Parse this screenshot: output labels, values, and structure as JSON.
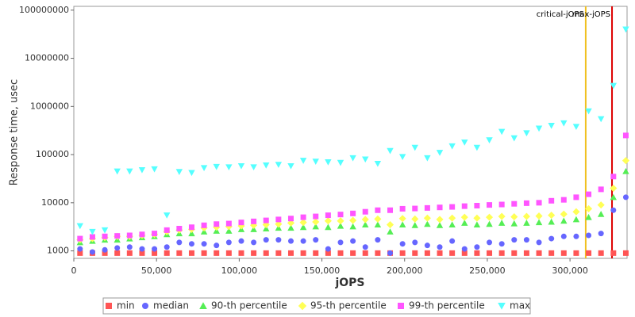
{
  "chart_data": {
    "type": "scatter",
    "ylabel": "Response time, usec",
    "xlabel": "jOPS",
    "ylog": true,
    "xlim": [
      0,
      334500
    ],
    "ylim": [
      700,
      120000000
    ],
    "xticks": [
      0,
      {
        "value": 50000,
        "label": "50,000"
      },
      {
        "value": 100000,
        "label": "100,000"
      },
      {
        "value": 150000,
        "label": "150,000"
      },
      {
        "value": 200000,
        "label": "200,000"
      },
      {
        "value": 250000,
        "label": "250,000"
      },
      {
        "value": 300000,
        "label": "300,000"
      }
    ],
    "yticks": [
      1000,
      10000,
      100000,
      1000000,
      10000000,
      100000000
    ],
    "markers": [
      {
        "label": "critical-jOPS",
        "value": 309500,
        "color": "#f0c020"
      },
      {
        "label": "max-jOPS",
        "value": 325400,
        "color": "#dd0000"
      }
    ],
    "x": [
      3750,
      11250,
      18750,
      26250,
      33750,
      41250,
      48750,
      56250,
      63750,
      71250,
      78750,
      86250,
      93750,
      101250,
      108750,
      116250,
      123750,
      131250,
      138750,
      146250,
      153750,
      161250,
      168750,
      176250,
      183750,
      191250,
      198750,
      206250,
      213750,
      221250,
      228750,
      236250,
      243750,
      251250,
      258750,
      266250,
      273750,
      281250,
      288750,
      296250,
      303750,
      311250,
      318750,
      326250,
      333750
    ],
    "series": [
      {
        "name": "min",
        "color": "#ff5555",
        "marker": "square",
        "values": [
          900,
          900,
          900,
          900,
          900,
          900,
          900,
          900,
          900,
          900,
          900,
          900,
          900,
          900,
          900,
          900,
          900,
          900,
          900,
          900,
          900,
          900,
          900,
          900,
          900,
          900,
          900,
          900,
          900,
          900,
          900,
          900,
          900,
          900,
          900,
          900,
          900,
          900,
          900,
          900,
          900,
          900,
          900,
          900,
          900
        ]
      },
      {
        "name": "median",
        "color": "#6666ff",
        "marker": "circle",
        "values": [
          1100,
          950,
          1050,
          1150,
          1200,
          1100,
          1100,
          1200,
          1500,
          1400,
          1400,
          1300,
          1500,
          1600,
          1500,
          1700,
          1700,
          1600,
          1600,
          1700,
          1100,
          1500,
          1600,
          1200,
          1700,
          900,
          1400,
          1500,
          1300,
          1200,
          1600,
          1100,
          1200,
          1500,
          1400,
          1700,
          1700,
          1500,
          1800,
          2000,
          2000,
          2100,
          2300,
          7000,
          13000
        ]
      },
      {
        "name": "90-th percentile",
        "color": "#55ee55",
        "marker": "triangle",
        "values": [
          1500,
          1600,
          1700,
          1700,
          1800,
          1900,
          2000,
          2200,
          2300,
          2300,
          2500,
          2600,
          2600,
          2800,
          2800,
          2900,
          3000,
          3000,
          3100,
          3200,
          3100,
          3300,
          3200,
          3500,
          3500,
          2500,
          3500,
          3400,
          3600,
          3400,
          3500,
          3800,
          3500,
          3600,
          3800,
          3700,
          3800,
          3900,
          4000,
          4200,
          4500,
          5000,
          5800,
          13000,
          45000
        ]
      },
      {
        "name": "95-th percentile",
        "color": "#ffff55",
        "marker": "diamond",
        "values": [
          1700,
          1800,
          1900,
          2000,
          2000,
          2100,
          2200,
          2500,
          2700,
          2800,
          3000,
          3100,
          3200,
          3300,
          3400,
          3500,
          3600,
          3800,
          3900,
          4000,
          4200,
          4200,
          4300,
          4500,
          4600,
          3500,
          4700,
          4600,
          4800,
          4500,
          4800,
          5000,
          4800,
          5000,
          5200,
          5100,
          5200,
          5300,
          5500,
          5800,
          6500,
          7500,
          9000,
          20000,
          75000
        ]
      },
      {
        "name": "99-th percentile",
        "color": "#ff55ff",
        "marker": "square",
        "values": [
          1800,
          1950,
          2000,
          2050,
          2100,
          2200,
          2300,
          2700,
          2900,
          3100,
          3400,
          3600,
          3700,
          3900,
          4100,
          4300,
          4500,
          4700,
          5000,
          5200,
          5500,
          5700,
          6000,
          6500,
          7000,
          7000,
          7500,
          7600,
          7800,
          8000,
          8200,
          8500,
          8700,
          9000,
          9200,
          9500,
          9800,
          10000,
          11000,
          11500,
          13000,
          15000,
          19000,
          35000,
          250000
        ]
      },
      {
        "name": "max",
        "color": "#55ffff",
        "marker": "triangle-down",
        "values": [
          3300,
          2500,
          2700,
          45000,
          45000,
          48000,
          50000,
          5500,
          44000,
          42000,
          53000,
          56000,
          55000,
          58000,
          55000,
          60000,
          62000,
          58000,
          75000,
          72000,
          70000,
          68000,
          85000,
          80000,
          65000,
          120000,
          90000,
          140000,
          85000,
          110000,
          150000,
          180000,
          140000,
          200000,
          300000,
          220000,
          280000,
          350000,
          400000,
          450000,
          380000,
          800000,
          550000,
          2700000,
          40000000
        ]
      }
    ]
  }
}
